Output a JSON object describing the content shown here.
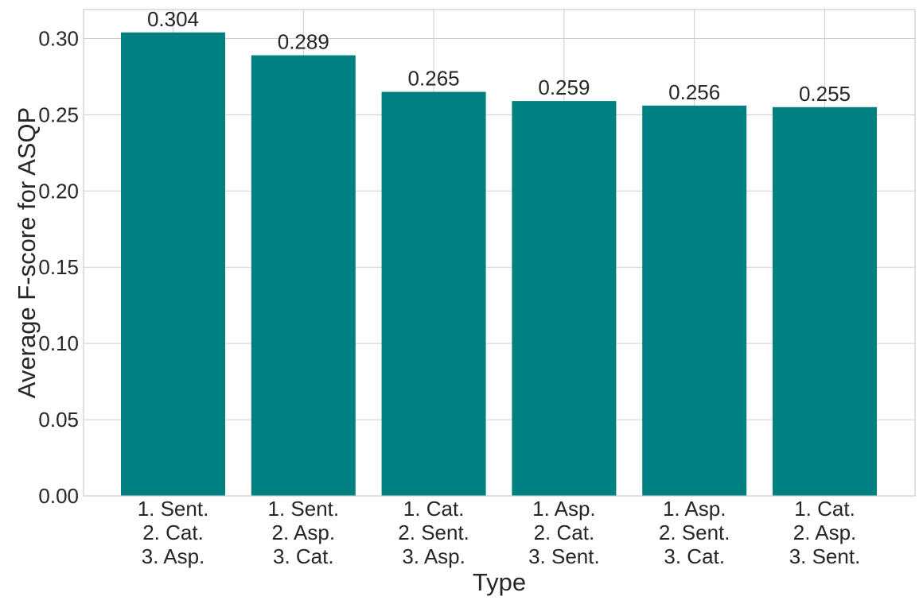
{
  "chart_data": {
    "type": "bar",
    "categories": [
      [
        "1. Sent.",
        "2. Cat.",
        "3. Asp."
      ],
      [
        "1. Sent.",
        "2. Asp.",
        "3. Cat."
      ],
      [
        "1. Cat.",
        "2. Sent.",
        "3. Asp."
      ],
      [
        "1. Asp.",
        "2. Cat.",
        "3. Sent."
      ],
      [
        "1. Asp.",
        "2. Sent.",
        "3. Cat."
      ],
      [
        "1. Cat.",
        "2. Asp.",
        "3. Sent."
      ]
    ],
    "values": [
      0.304,
      0.289,
      0.265,
      0.259,
      0.256,
      0.255
    ],
    "data_labels": [
      "0.304",
      "0.289",
      "0.265",
      "0.259",
      "0.256",
      "0.255"
    ],
    "xlabel": "Type",
    "ylabel": "Average F-score for ASQP",
    "ylim": [
      0,
      0.319
    ],
    "yticks": [
      0.0,
      0.05,
      0.1,
      0.15,
      0.2,
      0.25,
      0.3
    ],
    "ytick_labels": [
      "0.00",
      "0.05",
      "0.10",
      "0.15",
      "0.20",
      "0.25",
      "0.30"
    ],
    "grid": true,
    "bar_color": "#008080",
    "grid_color": "#cccccc",
    "text_color": "#262626"
  }
}
